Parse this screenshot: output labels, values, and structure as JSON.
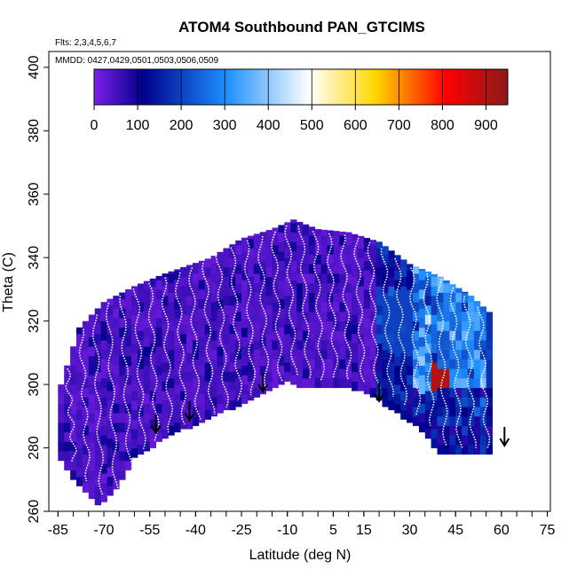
{
  "chart_data": {
    "type": "heatmap",
    "title": "ATOM4 Southbound PAN_GTCIMS",
    "flights_label": "Flts: 2,3,4,5,6,7",
    "dates_label": "MMDD: 0427,0429,0501,0503,0506,0509",
    "xlabel": "Latitude (deg N)",
    "ylabel": "Theta (C)",
    "xlim": [
      -88,
      76
    ],
    "ylim": [
      260,
      405
    ],
    "x_ticks": [
      -85,
      -70,
      -55,
      -40,
      -25,
      -10,
      5,
      15,
      30,
      45,
      60,
      75
    ],
    "y_ticks": [
      260,
      280,
      300,
      320,
      340,
      360,
      380,
      400
    ],
    "colorbar": {
      "min": 0,
      "max": 950,
      "ticks": [
        0,
        100,
        200,
        300,
        400,
        500,
        600,
        700,
        800,
        900
      ],
      "colors": [
        "#7b1fe8",
        "#00008b",
        "#1e90ff",
        "#ffffff",
        "#ffd700",
        "#ff0000",
        "#8b1a1a"
      ]
    },
    "lower_boundary": [
      [
        -85,
        278
      ],
      [
        -78,
        268
      ],
      [
        -72,
        262
      ],
      [
        -67,
        266
      ],
      [
        -60,
        277
      ],
      [
        -52,
        282
      ],
      [
        -45,
        286
      ],
      [
        -38,
        288
      ],
      [
        -30,
        292
      ],
      [
        -20,
        296
      ],
      [
        -10,
        301
      ],
      [
        -3,
        299
      ],
      [
        5,
        300
      ],
      [
        15,
        298
      ],
      [
        25,
        292
      ],
      [
        35,
        285
      ],
      [
        40,
        278
      ],
      [
        57,
        278
      ]
    ],
    "upper_boundary": [
      [
        -85,
        278
      ],
      [
        -84,
        300
      ],
      [
        -78,
        318
      ],
      [
        -70,
        326
      ],
      [
        -60,
        331
      ],
      [
        -50,
        335
      ],
      [
        -35,
        340
      ],
      [
        -25,
        346
      ],
      [
        -15,
        349
      ],
      [
        -8,
        352
      ],
      [
        0,
        349
      ],
      [
        10,
        348
      ],
      [
        20,
        345
      ],
      [
        30,
        338
      ],
      [
        40,
        334
      ],
      [
        50,
        328
      ],
      [
        57,
        322
      ],
      [
        59,
        300
      ],
      [
        57,
        278
      ]
    ],
    "high_cells": [
      {
        "lat_range": [
          37,
          42
        ],
        "theta_range": [
          298,
          306
        ],
        "value": 900
      },
      {
        "lat_range": [
          38,
          41
        ],
        "theta_range": [
          300,
          304
        ],
        "value": 720
      },
      {
        "lat_range": [
          42,
          46
        ],
        "theta_range": [
          298,
          306
        ],
        "value": 300
      },
      {
        "lat_range": [
          22,
          30
        ],
        "theta_range": [
          310,
          330
        ],
        "value": 200
      },
      {
        "lat_range": [
          45,
          56
        ],
        "theta_range": [
          300,
          332
        ],
        "value": 180
      }
    ],
    "arrows": [
      {
        "lat": -53,
        "theta": 285
      },
      {
        "lat": -42,
        "theta": 289
      },
      {
        "lat": -18,
        "theta": 298
      },
      {
        "lat": 20,
        "theta": 295
      },
      {
        "lat": 61,
        "theta": 281
      }
    ]
  }
}
